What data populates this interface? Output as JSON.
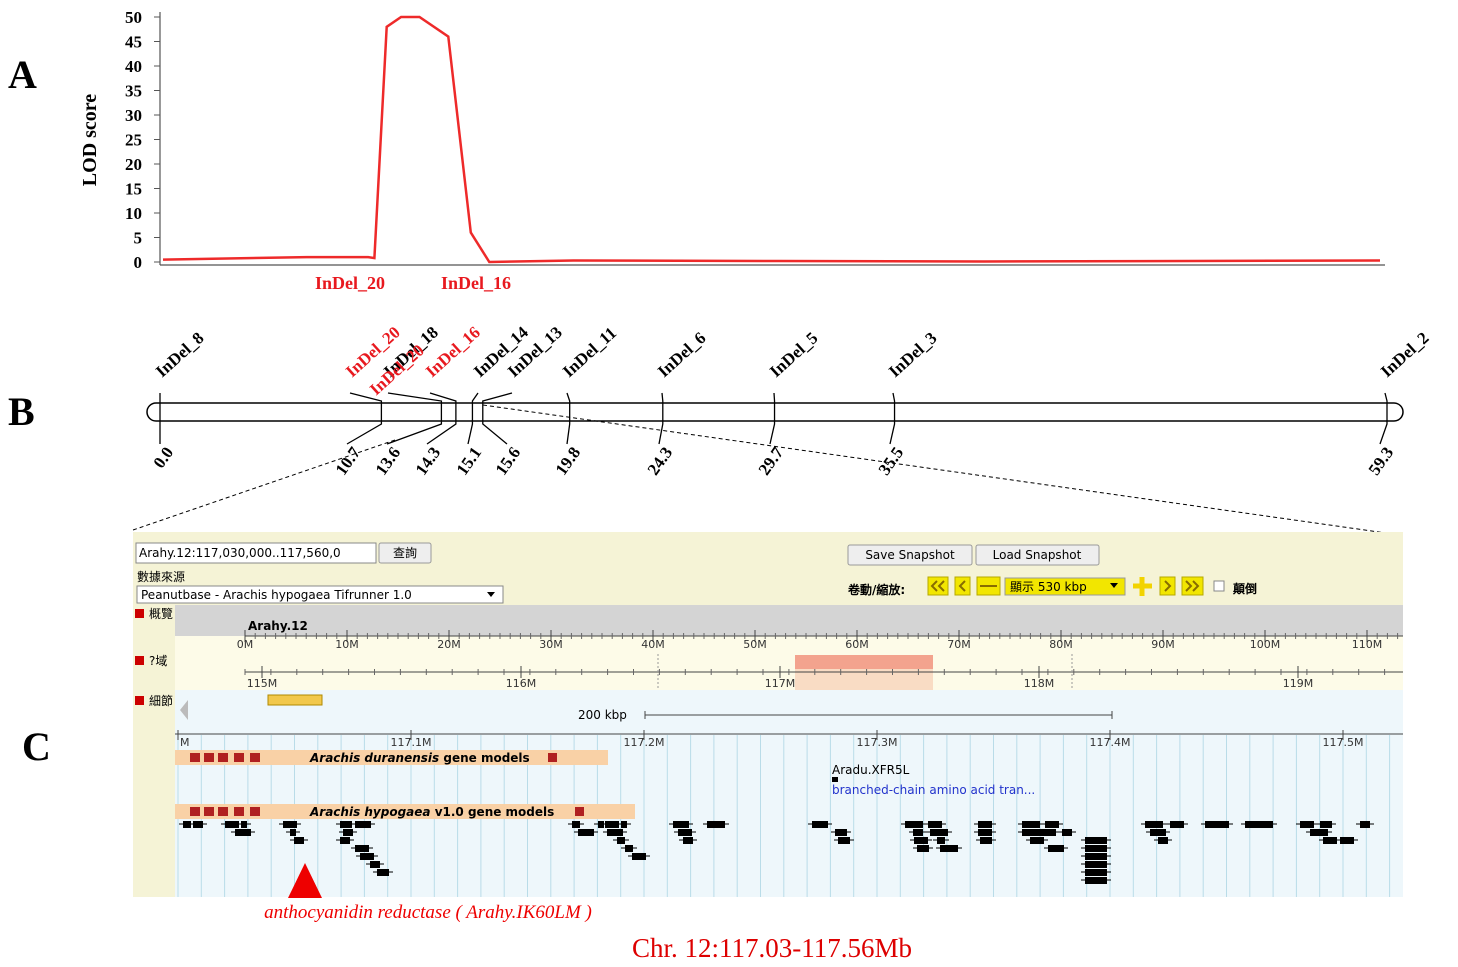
{
  "panel_labels": [
    "A",
    "B",
    "C"
  ],
  "chart_data": {
    "type": "line",
    "y_label": "LOD score",
    "x": [
      0,
      7,
      10,
      10.3,
      10.9,
      11.6,
      12.5,
      13.9,
      15,
      15.9,
      20,
      30,
      40,
      50,
      59.3
    ],
    "values": [
      0.5,
      1,
      1,
      0.8,
      48,
      50,
      50,
      46,
      6,
      0,
      0.3,
      0.2,
      0.1,
      0.2,
      0.3
    ],
    "color": "#ee2a2a",
    "xlim": [
      0,
      59.3
    ],
    "ylim": [
      0,
      50
    ],
    "yticks": [
      0,
      5,
      10,
      15,
      20,
      25,
      30,
      35,
      40,
      45,
      50
    ],
    "annotations": [
      "InDel_20",
      "InDel_16"
    ]
  },
  "linkage_map": {
    "markers": [
      {
        "name": "InDel_8",
        "position": {
          "value": 0,
          "label": "0.0"
        },
        "color": "#000000"
      },
      {
        "name": "InDel_20",
        "position": {
          "value": 10.7,
          "label": "10.7"
        },
        "color": "#e8191f"
      },
      {
        "name": "InDel_18",
        "position": {
          "value": 13.6,
          "label": "13.6"
        },
        "color": "#000000"
      },
      {
        "name": "InDel_16",
        "position": {
          "value": 14.3,
          "label": "14.3"
        },
        "color": "#e8191f"
      },
      {
        "name": "InDel_14",
        "position": {
          "value": 15.1,
          "label": "15.1"
        },
        "color": "#000000"
      },
      {
        "name": "InDel_13",
        "position": {
          "value": 15.6,
          "label": "15.6"
        },
        "color": "#000000"
      },
      {
        "name": "InDel_11",
        "position": {
          "value": 19.8,
          "label": "19.8"
        },
        "color": "#000000"
      },
      {
        "name": "InDel_6",
        "position": {
          "value": 24.3,
          "label": "24.3"
        },
        "color": "#000000"
      },
      {
        "name": "InDel_5",
        "position": {
          "value": 29.7,
          "label": "29.7"
        },
        "color": "#000000"
      },
      {
        "name": "InDel_3",
        "position": {
          "value": 35.5,
          "label": "35.5"
        },
        "color": "#000000"
      },
      {
        "name": "InDel_2",
        "position": {
          "value": 59.3,
          "label": "59.3"
        },
        "color": "#000000"
      }
    ],
    "extra_label": {
      "name": "InDel_20",
      "color": "#e8191f"
    }
  },
  "browser": {
    "location": "Arahy.12:117,030,000..117,560,0",
    "search_button": "查詢",
    "source_label": "數據來源",
    "source": "Peanutbase - Arachis hypogaea Tifrunner 1.0",
    "save_snapshot": "Save Snapshot",
    "load_snapshot": "Load Snapshot",
    "zoom_label": "卷動/縮放:",
    "zoom_select": "顯示 530 kbp",
    "flip_label": "顛倒",
    "tracks": {
      "overview": "概覽",
      "region": "?域",
      "detail": "細節"
    },
    "chromosome": "Arahy.12",
    "overview_ticks": [
      "0M",
      "10M",
      "20M",
      "30M",
      "40M",
      "50M",
      "60M",
      "70M",
      "80M",
      "90M",
      "100M",
      "110M"
    ],
    "region_ticks": [
      "115M",
      "116M",
      "117M",
      "118M",
      "119M"
    ],
    "scale_bar": "200 kbp",
    "detail_ticks": [
      "M",
      "117.1M",
      "117.2M",
      "117.3M",
      "117.4M",
      "117.5M"
    ],
    "gene_tracks": [
      {
        "species": "Arachis duranensis",
        "suffix": "gene models"
      },
      {
        "species": "Arachis hypogaea",
        "suffix": "v1.0 gene models"
      }
    ],
    "feature": {
      "name": "Aradu.XFR5L",
      "description": "branched-chain amino acid tran..."
    }
  },
  "annotation": "anthocyanidin reductase ( Arahy.IK60LM )",
  "caption": "Chr. 12:117.03-117.56Mb"
}
